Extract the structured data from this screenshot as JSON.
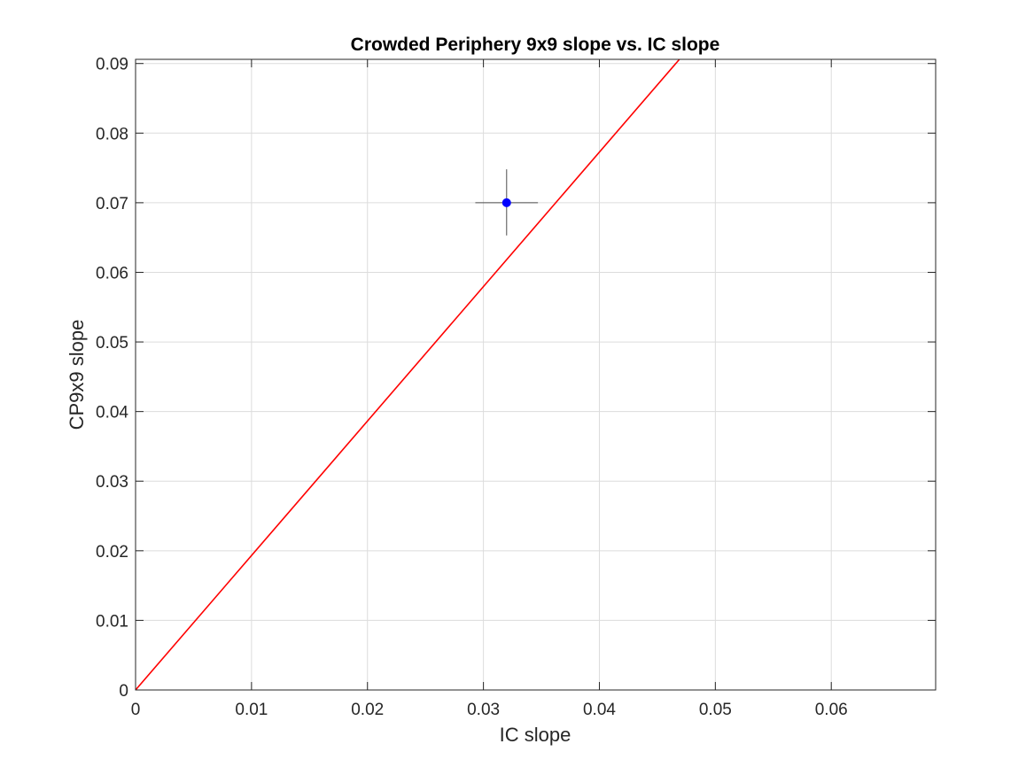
{
  "chart_data": {
    "type": "scatter",
    "title": "Crowded Periphery 9x9 slope vs. IC slope",
    "xlabel": "IC slope",
    "ylabel": "CP9x9 slope",
    "xlim": [
      0,
      0.069
    ],
    "ylim": [
      0,
      0.0906
    ],
    "xticks": [
      0,
      0.01,
      0.02,
      0.03,
      0.04,
      0.05,
      0.06
    ],
    "xtick_labels": [
      "0",
      "0.01",
      "0.02",
      "0.03",
      "0.04",
      "0.05",
      "0.06"
    ],
    "yticks": [
      0,
      0.01,
      0.02,
      0.03,
      0.04,
      0.05,
      0.06,
      0.07,
      0.08,
      0.09
    ],
    "ytick_labels": [
      "0",
      "0.01",
      "0.02",
      "0.03",
      "0.04",
      "0.05",
      "0.06",
      "0.07",
      "0.08",
      "0.09"
    ],
    "grid": true,
    "box": true,
    "points": [
      {
        "x": 0.032,
        "y": 0.07,
        "x_err": [
          0.0293,
          0.0347
        ],
        "y_err": [
          0.0653,
          0.0748
        ],
        "color": "#0000ff"
      }
    ],
    "reference_line": {
      "label": "",
      "x": [
        0,
        0.0469
      ],
      "y": [
        0,
        0.0906
      ],
      "color": "#ff0000"
    },
    "colors": {
      "grid": "#dcdcdc",
      "axes": "#262626",
      "errorbar": "#4d4d4d",
      "point": "#0000ff",
      "reference": "#ff0000"
    }
  }
}
